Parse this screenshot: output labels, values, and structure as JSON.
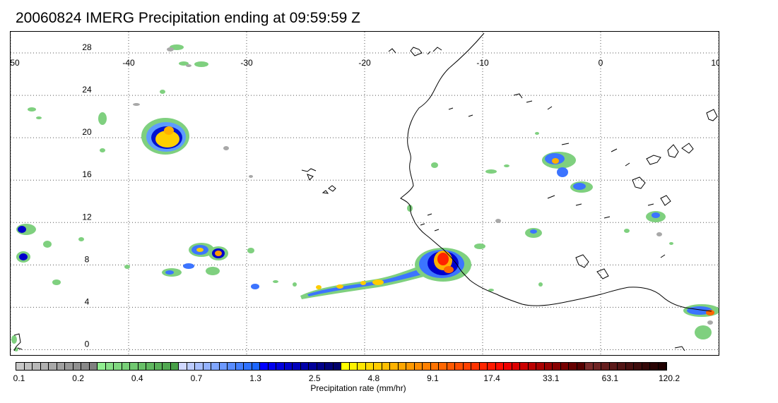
{
  "title": "20060824 IMERG Precipitation ending at 09:59:59 Z",
  "map": {
    "lon_range": [
      -50,
      10
    ],
    "lat_range": [
      -0.5,
      30
    ],
    "lon_ticks": [
      "-50",
      "-40",
      "-30",
      "-20",
      "-10",
      "0",
      "10"
    ],
    "lat_ticks": [
      "0",
      "4",
      "8",
      "12",
      "16",
      "20",
      "24",
      "28"
    ],
    "gridlines": "dotted",
    "coastline_color": "#000000"
  },
  "precip_features": [
    {
      "name": "storm-20N-39W",
      "lon": -39.2,
      "lat": 20.0,
      "peak_mm_hr": 4.8
    },
    {
      "name": "band-8N-40W",
      "lon": -36.5,
      "lat": 9.5,
      "peak_mm_hr": 4.8
    },
    {
      "name": "band-7N-20W",
      "lon": -20.0,
      "lat": 6.5,
      "peak_mm_hr": 4.8
    },
    {
      "name": "storm-9N-13W",
      "lon": -12.5,
      "lat": 8.6,
      "peak_mm_hr": 17.4
    },
    {
      "name": "cell-17N-4W",
      "lon": -3.5,
      "lat": 17.5,
      "peak_mm_hr": 4.8
    },
    {
      "name": "cell-3N-9E",
      "lon": 9.0,
      "lat": 3.6,
      "peak_mm_hr": 9.1
    }
  ],
  "colorbar": {
    "label": "Precipitation rate (mm/hr)",
    "tick_labels": [
      "0.1",
      "0.2",
      "0.4",
      "0.7",
      "1.3",
      "2.5",
      "4.8",
      "9.1",
      "17.4",
      "33.1",
      "63.1",
      "120.2"
    ],
    "colors": [
      "#c8c8c8",
      "#c0c0c0",
      "#b8b8b8",
      "#b0b0b0",
      "#a8a8a8",
      "#a0a0a0",
      "#989898",
      "#909090",
      "#888888",
      "#808080",
      "#90ee90",
      "#88e088",
      "#80d880",
      "#78d078",
      "#70c870",
      "#68c068",
      "#60b860",
      "#58b058",
      "#50a850",
      "#48a048",
      "#d0d8ff",
      "#bcccff",
      "#a8bfff",
      "#94b2ff",
      "#80a6ff",
      "#6c99ff",
      "#588cff",
      "#447fff",
      "#3072ff",
      "#1c66ff",
      "#0000ff",
      "#0000ee",
      "#0000dd",
      "#0000cc",
      "#0000bb",
      "#0000aa",
      "#00009a",
      "#00008a",
      "#00007a",
      "#00006a",
      "#ffff00",
      "#fff200",
      "#ffe600",
      "#ffd900",
      "#ffcc00",
      "#ffbf00",
      "#ffb300",
      "#ffa600",
      "#ff9900",
      "#ff8c00",
      "#ff8000",
      "#ff7300",
      "#ff6600",
      "#ff5900",
      "#ff4d00",
      "#ff4000",
      "#ff3300",
      "#ff2600",
      "#ff1a00",
      "#ff0d00",
      "#ee0000",
      "#dd0000",
      "#cc0000",
      "#bb0000",
      "#aa0000",
      "#990000",
      "#880000",
      "#770000",
      "#660000",
      "#550000",
      "#7a2a2a",
      "#702424",
      "#661f1f",
      "#5c1a1a",
      "#521515",
      "#481010",
      "#3e0c0c",
      "#340808",
      "#2a0404",
      "#200000"
    ]
  }
}
